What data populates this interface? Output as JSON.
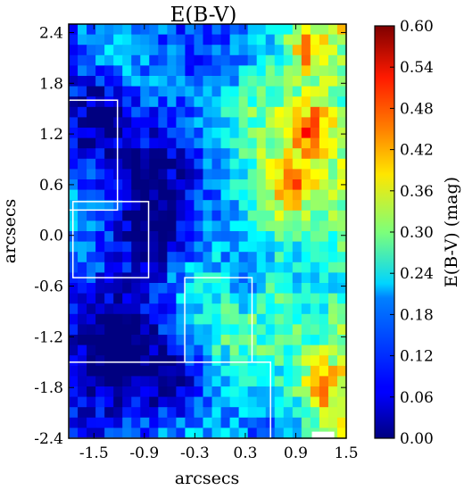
{
  "chart_data": {
    "type": "heatmap",
    "title": "E(B-V)",
    "xlabel": "arcsecs",
    "ylabel": "arcsecs",
    "colorbar_label": "E(B-V) (mag)",
    "colormap": "jet",
    "xlim": [
      -1.8,
      1.5
    ],
    "ylim": [
      -2.4,
      2.5
    ],
    "clim": [
      0.0,
      0.6
    ],
    "x_ticks": [
      "-1.5",
      "-0.9",
      "-0.3",
      "0.3",
      "0.9",
      "1.5"
    ],
    "y_ticks": [
      "2.4",
      "1.8",
      "1.2",
      "0.6",
      "0.0",
      "-0.6",
      "-1.2",
      "-1.8",
      "-2.4"
    ],
    "colorbar_ticks": [
      "0.00",
      "0.06",
      "0.12",
      "0.18",
      "0.24",
      "0.30",
      "0.36",
      "0.42",
      "0.48",
      "0.54",
      "0.60"
    ],
    "grid": false,
    "regions": [
      {
        "x0": -1.8,
        "x1": -1.22,
        "y0": 0.3,
        "y1": 1.6
      },
      {
        "x0": -1.75,
        "x1": -0.85,
        "y0": -0.5,
        "y1": 0.4
      },
      {
        "x0": -0.42,
        "x1": 0.38,
        "y0": -1.5,
        "y1": -0.5
      },
      {
        "x0": -1.8,
        "x1": 0.6,
        "y0": -2.4,
        "y1": -1.5
      },
      {
        "x0": 1.1,
        "x1": 1.35,
        "y0": -2.4,
        "y1": -2.33
      }
    ]
  }
}
